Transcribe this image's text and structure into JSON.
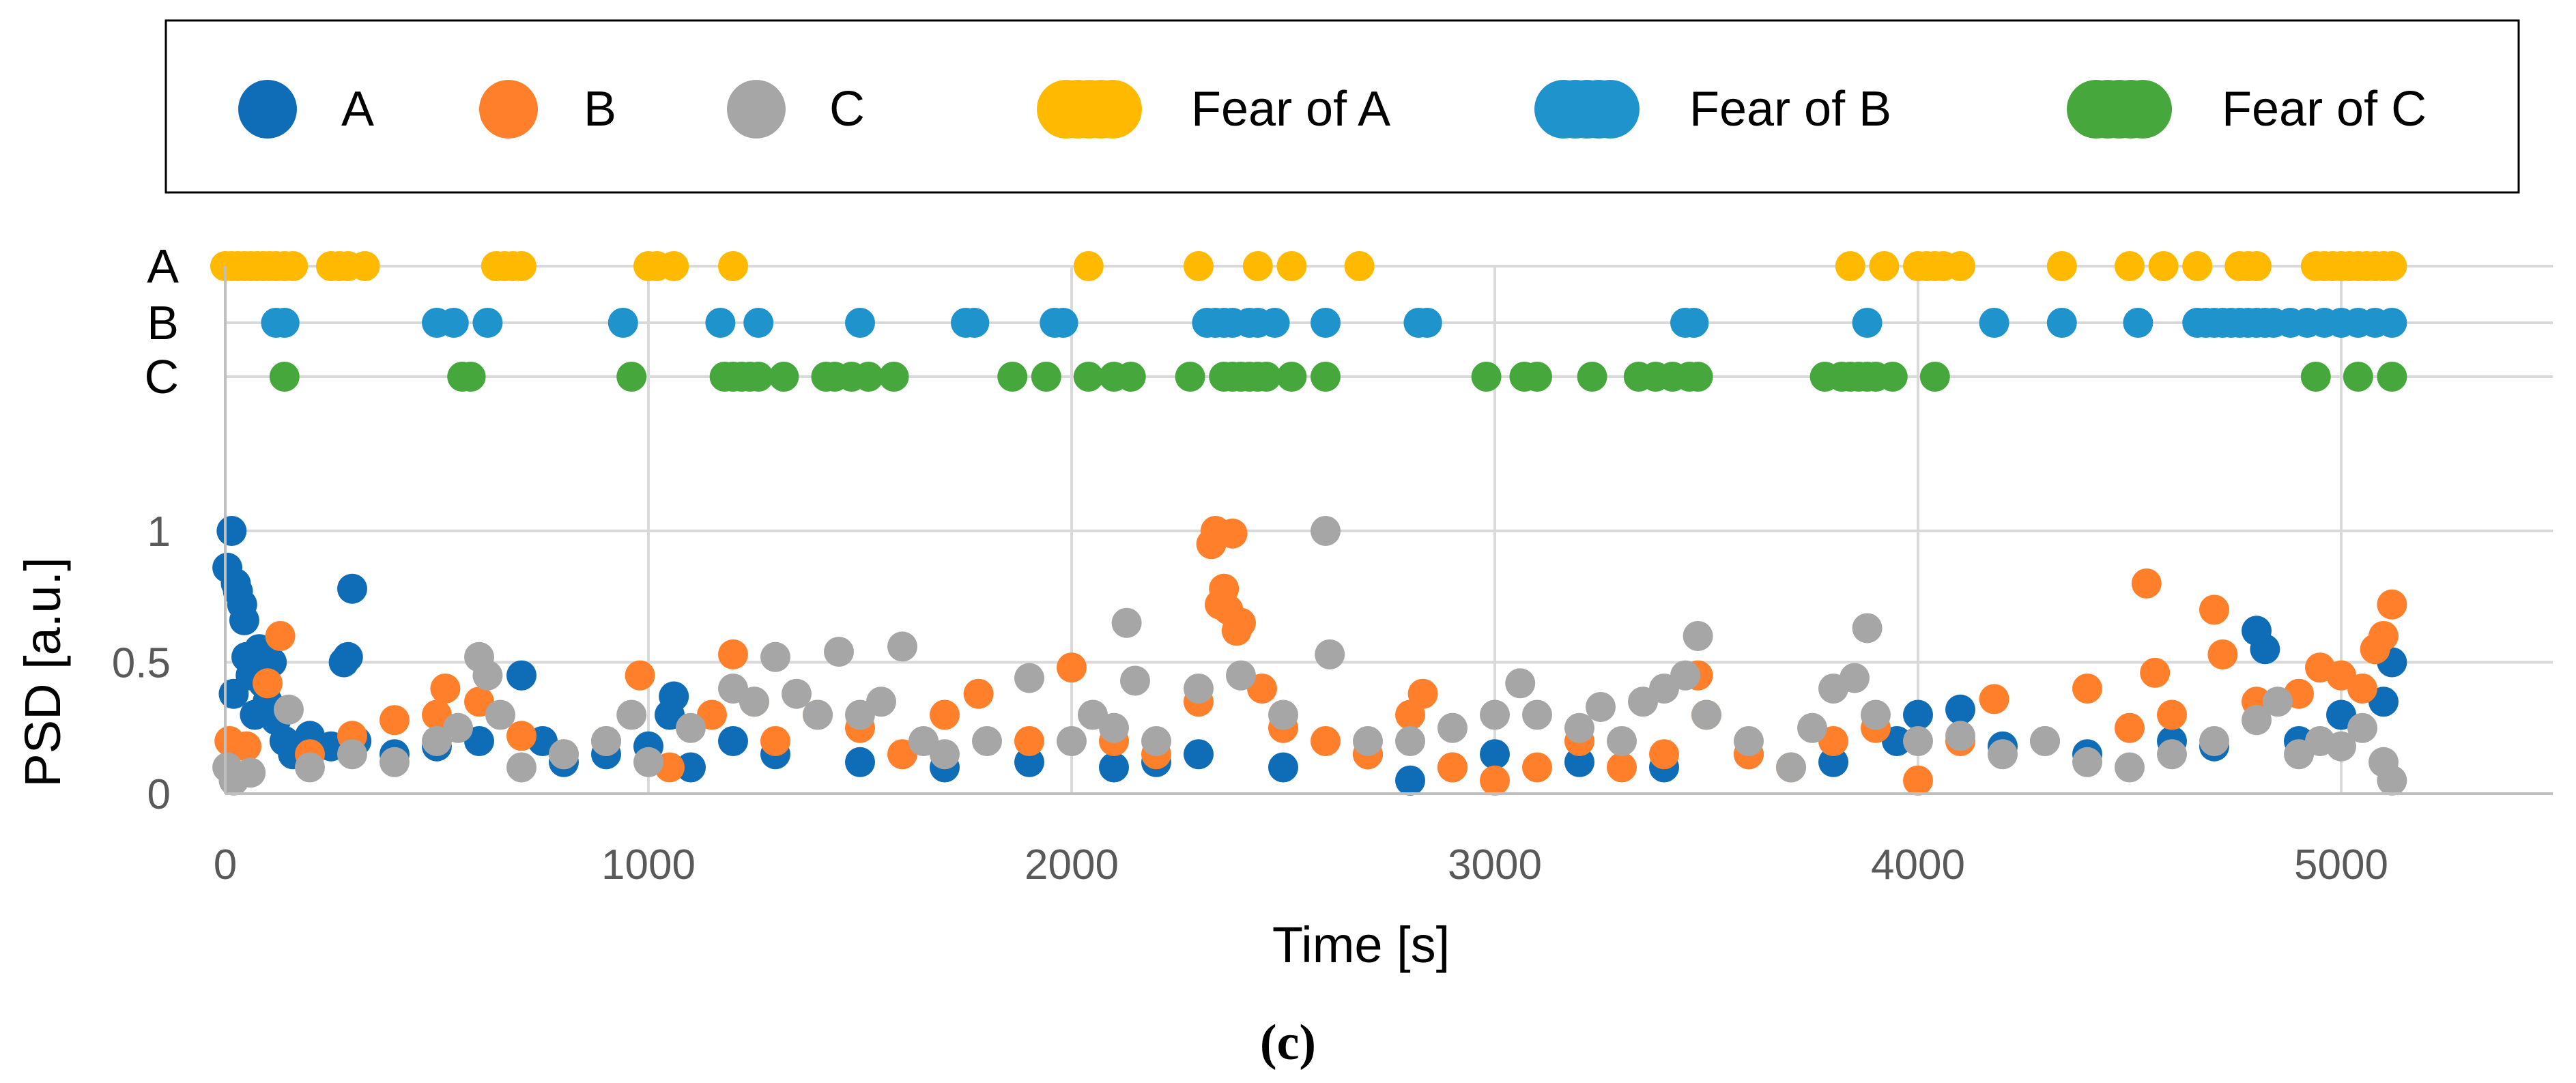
{
  "caption": "(c)",
  "colors": {
    "A": "#0F6CB6",
    "B": "#FF7F2A",
    "C": "#A6A6A6",
    "fear_A": "#FFBA00",
    "fear_B": "#1F94CC",
    "fear_C": "#46A83C",
    "grid": "#D9D9D9"
  },
  "legend": {
    "items": [
      {
        "label": "A",
        "series": "A"
      },
      {
        "label": "B",
        "series": "B"
      },
      {
        "label": "C",
        "series": "C"
      },
      {
        "label": "Fear of A",
        "series": "fear_A"
      },
      {
        "label": "Fear of B",
        "series": "fear_B"
      },
      {
        "label": "Fear of C",
        "series": "fear_C"
      }
    ]
  },
  "chart_data": {
    "type": "scatter",
    "title": "",
    "xlabel": "Time [s]",
    "ylabel": "PSD [a.u.]",
    "xlim": [
      0,
      5500
    ],
    "ylim": [
      0,
      1
    ],
    "x_ticks": [
      0,
      1000,
      2000,
      3000,
      4000,
      5000
    ],
    "x_tick_labels": [
      "0",
      "1000",
      "2000",
      "3000",
      "4000",
      "5000"
    ],
    "y_ticks": [
      0,
      0.5,
      1
    ],
    "y_tick_labels": [
      "0",
      "0.5",
      "1"
    ],
    "grid": true,
    "legend_position": "top",
    "fear_events": {
      "rows": [
        "A",
        "B",
        "C"
      ],
      "row_labels": [
        "A",
        "B",
        "C"
      ],
      "A": [
        0,
        15,
        30,
        45,
        60,
        75,
        90,
        105,
        120,
        140,
        160,
        250,
        270,
        290,
        330,
        640,
        660,
        680,
        700,
        1000,
        1020,
        1060,
        1200,
        2040,
        2300,
        2440,
        2520,
        2680,
        3840,
        3920,
        4000,
        4020,
        4040,
        4060,
        4100,
        4340,
        4500,
        4580,
        4660,
        4760,
        4780,
        4800,
        4940,
        4960,
        4980,
        5000,
        5020,
        5040,
        5060,
        5080,
        5100,
        5120
      ],
      "B": [
        120,
        140,
        500,
        540,
        620,
        940,
        1170,
        1260,
        1500,
        1750,
        1770,
        1960,
        1980,
        2320,
        2340,
        2360,
        2380,
        2420,
        2440,
        2480,
        2600,
        2820,
        2840,
        3450,
        3470,
        3880,
        4180,
        4340,
        4520,
        4660,
        4680,
        4700,
        4720,
        4740,
        4760,
        4780,
        4800,
        4820,
        4840,
        4880,
        4920,
        4960,
        5000,
        5040,
        5080,
        5120
      ],
      "C": [
        140,
        560,
        580,
        960,
        1180,
        1200,
        1220,
        1240,
        1260,
        1320,
        1420,
        1440,
        1480,
        1520,
        1580,
        1860,
        1940,
        2040,
        2100,
        2140,
        2280,
        2360,
        2380,
        2400,
        2420,
        2440,
        2460,
        2520,
        2600,
        2980,
        3070,
        3100,
        3230,
        3340,
        3380,
        3420,
        3460,
        3480,
        3780,
        3820,
        3840,
        3860,
        3880,
        3900,
        3940,
        4040,
        4940,
        5040,
        5120
      ]
    },
    "series": [
      {
        "name": "A",
        "points": [
          [
            5,
            0.86
          ],
          [
            15,
            1.0
          ],
          [
            20,
            0.38
          ],
          [
            25,
            0.8
          ],
          [
            30,
            0.77
          ],
          [
            40,
            0.72
          ],
          [
            45,
            0.66
          ],
          [
            50,
            0.52
          ],
          [
            60,
            0.45
          ],
          [
            70,
            0.3
          ],
          [
            80,
            0.55
          ],
          [
            90,
            0.42
          ],
          [
            100,
            0.35
          ],
          [
            110,
            0.5
          ],
          [
            120,
            0.28
          ],
          [
            140,
            0.2
          ],
          [
            160,
            0.15
          ],
          [
            200,
            0.22
          ],
          [
            250,
            0.18
          ],
          [
            280,
            0.5
          ],
          [
            290,
            0.52
          ],
          [
            300,
            0.78
          ],
          [
            310,
            0.2
          ],
          [
            400,
            0.15
          ],
          [
            500,
            0.18
          ],
          [
            600,
            0.2
          ],
          [
            700,
            0.45
          ],
          [
            750,
            0.2
          ],
          [
            800,
            0.12
          ],
          [
            900,
            0.15
          ],
          [
            1000,
            0.18
          ],
          [
            1050,
            0.3
          ],
          [
            1060,
            0.37
          ],
          [
            1100,
            0.1
          ],
          [
            1200,
            0.2
          ],
          [
            1300,
            0.15
          ],
          [
            1500,
            0.12
          ],
          [
            1700,
            0.1
          ],
          [
            1900,
            0.12
          ],
          [
            2100,
            0.1
          ],
          [
            2200,
            0.12
          ],
          [
            2300,
            0.15
          ],
          [
            2500,
            0.1
          ],
          [
            2700,
            0.15
          ],
          [
            2800,
            0.05
          ],
          [
            2900,
            0.1
          ],
          [
            3000,
            0.15
          ],
          [
            3200,
            0.12
          ],
          [
            3400,
            0.1
          ],
          [
            3600,
            0.15
          ],
          [
            3800,
            0.12
          ],
          [
            3950,
            0.2
          ],
          [
            4000,
            0.3
          ],
          [
            4100,
            0.32
          ],
          [
            4200,
            0.18
          ],
          [
            4400,
            0.15
          ],
          [
            4600,
            0.2
          ],
          [
            4700,
            0.18
          ],
          [
            4800,
            0.62
          ],
          [
            4820,
            0.55
          ],
          [
            4900,
            0.2
          ],
          [
            5000,
            0.3
          ],
          [
            5100,
            0.35
          ],
          [
            5120,
            0.5
          ]
        ]
      },
      {
        "name": "B",
        "points": [
          [
            10,
            0.2
          ],
          [
            50,
            0.18
          ],
          [
            100,
            0.42
          ],
          [
            130,
            0.6
          ],
          [
            200,
            0.15
          ],
          [
            300,
            0.22
          ],
          [
            400,
            0.28
          ],
          [
            500,
            0.3
          ],
          [
            520,
            0.4
          ],
          [
            600,
            0.35
          ],
          [
            700,
            0.22
          ],
          [
            800,
            0.15
          ],
          [
            900,
            0.2
          ],
          [
            980,
            0.45
          ],
          [
            1050,
            0.1
          ],
          [
            1150,
            0.3
          ],
          [
            1200,
            0.53
          ],
          [
            1250,
            0.35
          ],
          [
            1300,
            0.2
          ],
          [
            1400,
            0.3
          ],
          [
            1500,
            0.25
          ],
          [
            1600,
            0.15
          ],
          [
            1700,
            0.3
          ],
          [
            1780,
            0.38
          ],
          [
            1900,
            0.2
          ],
          [
            2000,
            0.48
          ],
          [
            2100,
            0.2
          ],
          [
            2200,
            0.15
          ],
          [
            2300,
            0.35
          ],
          [
            2330,
            0.95
          ],
          [
            2340,
            1.0
          ],
          [
            2350,
            0.72
          ],
          [
            2360,
            0.78
          ],
          [
            2370,
            0.7
          ],
          [
            2380,
            0.99
          ],
          [
            2390,
            0.62
          ],
          [
            2400,
            0.65
          ],
          [
            2450,
            0.4
          ],
          [
            2500,
            0.25
          ],
          [
            2600,
            0.2
          ],
          [
            2700,
            0.15
          ],
          [
            2800,
            0.3
          ],
          [
            2830,
            0.38
          ],
          [
            2900,
            0.1
          ],
          [
            3000,
            0.05
          ],
          [
            3100,
            0.1
          ],
          [
            3200,
            0.2
          ],
          [
            3300,
            0.1
          ],
          [
            3400,
            0.15
          ],
          [
            3480,
            0.45
          ],
          [
            3500,
            0.3
          ],
          [
            3600,
            0.15
          ],
          [
            3700,
            0.1
          ],
          [
            3800,
            0.2
          ],
          [
            3900,
            0.25
          ],
          [
            4000,
            0.05
          ],
          [
            4100,
            0.2
          ],
          [
            4180,
            0.36
          ],
          [
            4300,
            0.2
          ],
          [
            4400,
            0.4
          ],
          [
            4500,
            0.25
          ],
          [
            4540,
            0.8
          ],
          [
            4560,
            0.46
          ],
          [
            4600,
            0.3
          ],
          [
            4700,
            0.7
          ],
          [
            4720,
            0.53
          ],
          [
            4800,
            0.35
          ],
          [
            4900,
            0.38
          ],
          [
            4950,
            0.48
          ],
          [
            5000,
            0.45
          ],
          [
            5050,
            0.4
          ],
          [
            5080,
            0.55
          ],
          [
            5100,
            0.6
          ],
          [
            5120,
            0.72
          ]
        ]
      },
      {
        "name": "C",
        "points": [
          [
            5,
            0.1
          ],
          [
            20,
            0.05
          ],
          [
            60,
            0.08
          ],
          [
            150,
            0.32
          ],
          [
            200,
            0.1
          ],
          [
            300,
            0.15
          ],
          [
            400,
            0.12
          ],
          [
            500,
            0.2
          ],
          [
            550,
            0.25
          ],
          [
            600,
            0.52
          ],
          [
            620,
            0.45
          ],
          [
            650,
            0.3
          ],
          [
            700,
            0.1
          ],
          [
            800,
            0.15
          ],
          [
            900,
            0.2
          ],
          [
            960,
            0.3
          ],
          [
            1000,
            0.12
          ],
          [
            1100,
            0.25
          ],
          [
            1200,
            0.4
          ],
          [
            1250,
            0.35
          ],
          [
            1300,
            0.52
          ],
          [
            1350,
            0.38
          ],
          [
            1400,
            0.3
          ],
          [
            1450,
            0.54
          ],
          [
            1500,
            0.3
          ],
          [
            1550,
            0.35
          ],
          [
            1600,
            0.56
          ],
          [
            1650,
            0.2
          ],
          [
            1700,
            0.15
          ],
          [
            1800,
            0.2
          ],
          [
            1900,
            0.44
          ],
          [
            2000,
            0.2
          ],
          [
            2050,
            0.3
          ],
          [
            2100,
            0.25
          ],
          [
            2130,
            0.65
          ],
          [
            2150,
            0.43
          ],
          [
            2200,
            0.2
          ],
          [
            2300,
            0.4
          ],
          [
            2400,
            0.45
          ],
          [
            2500,
            0.3
          ],
          [
            2600,
            1.0
          ],
          [
            2610,
            0.53
          ],
          [
            2700,
            0.2
          ],
          [
            2800,
            0.2
          ],
          [
            2900,
            0.25
          ],
          [
            3000,
            0.3
          ],
          [
            3060,
            0.42
          ],
          [
            3100,
            0.3
          ],
          [
            3200,
            0.25
          ],
          [
            3250,
            0.33
          ],
          [
            3300,
            0.2
          ],
          [
            3350,
            0.35
          ],
          [
            3400,
            0.4
          ],
          [
            3450,
            0.45
          ],
          [
            3480,
            0.6
          ],
          [
            3500,
            0.3
          ],
          [
            3600,
            0.2
          ],
          [
            3700,
            0.1
          ],
          [
            3750,
            0.25
          ],
          [
            3800,
            0.4
          ],
          [
            3850,
            0.44
          ],
          [
            3880,
            0.63
          ],
          [
            3900,
            0.3
          ],
          [
            4000,
            0.2
          ],
          [
            4100,
            0.22
          ],
          [
            4200,
            0.15
          ],
          [
            4300,
            0.2
          ],
          [
            4400,
            0.12
          ],
          [
            4500,
            0.1
          ],
          [
            4600,
            0.15
          ],
          [
            4700,
            0.2
          ],
          [
            4800,
            0.28
          ],
          [
            4850,
            0.35
          ],
          [
            4900,
            0.15
          ],
          [
            4950,
            0.2
          ],
          [
            5000,
            0.18
          ],
          [
            5050,
            0.25
          ],
          [
            5100,
            0.12
          ],
          [
            5120,
            0.05
          ]
        ]
      }
    ]
  }
}
